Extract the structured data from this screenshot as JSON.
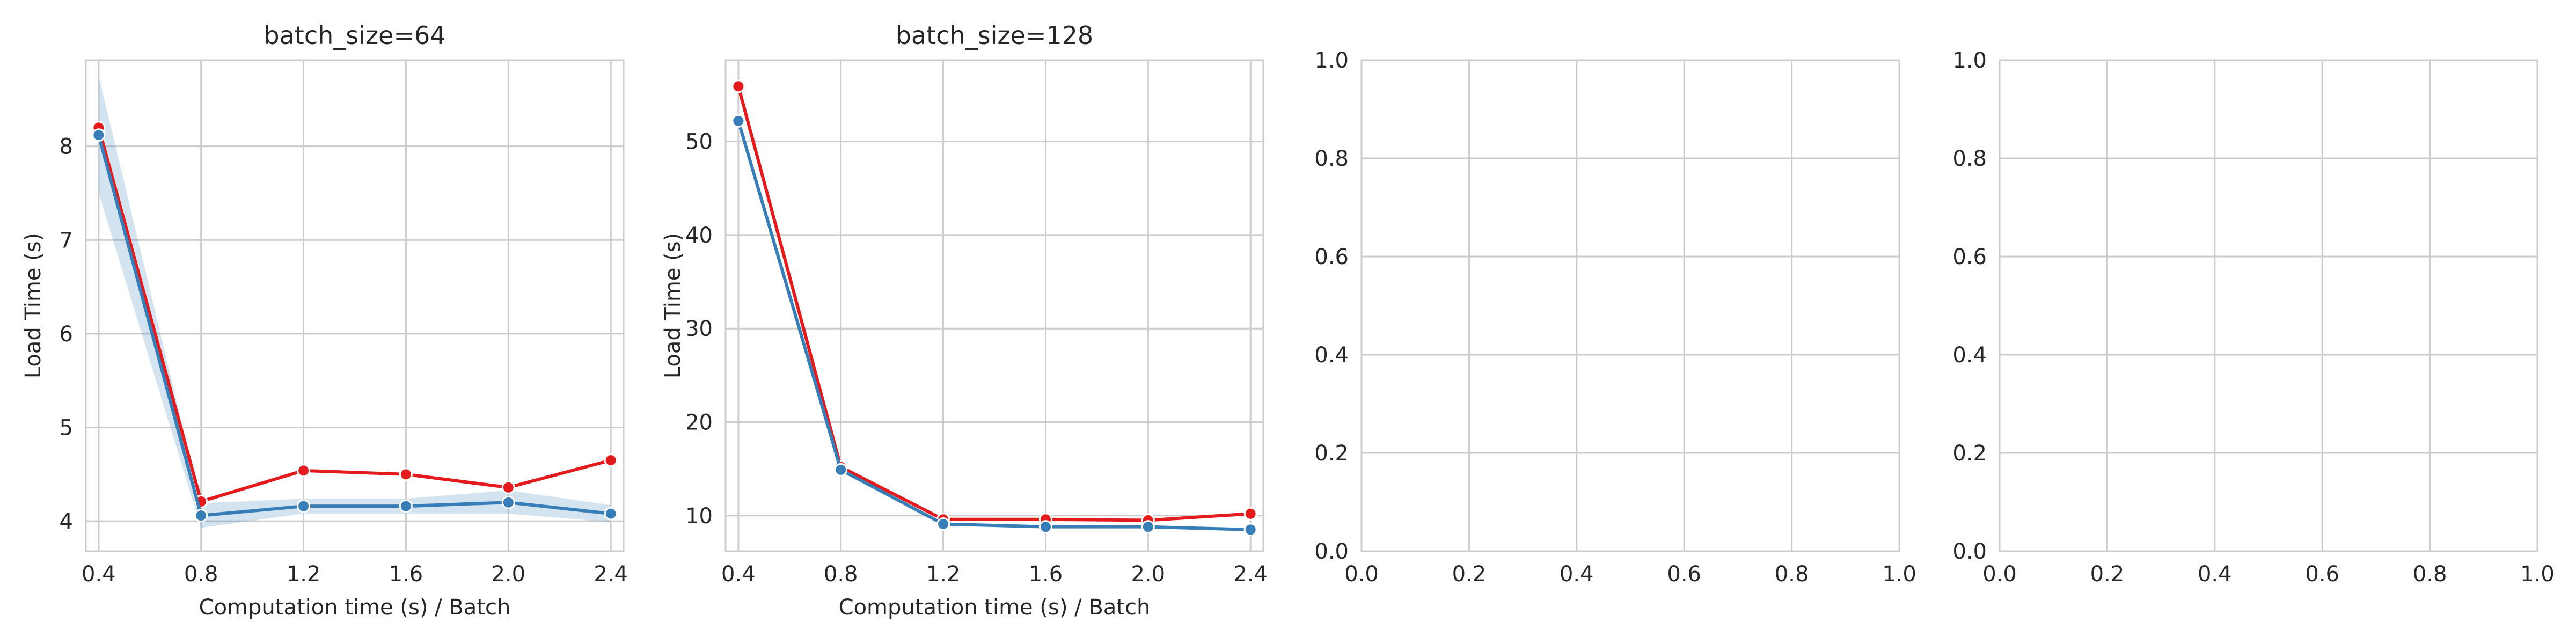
{
  "chart_data": [
    {
      "type": "line",
      "title": "batch_size=64",
      "xlabel": "Computation time (s) / Batch",
      "ylabel": "Load Time (s)",
      "xlim": [
        0.35,
        2.45
      ],
      "ylim": [
        3.68,
        8.92
      ],
      "xticks": [
        "0.4",
        "0.8",
        "1.2",
        "1.6",
        "2.0",
        "2.4"
      ],
      "yticks": [
        "4",
        "5",
        "6",
        "7",
        "8"
      ],
      "grid": true,
      "x": [
        0.4,
        0.8,
        1.2,
        1.6,
        2.0,
        2.4
      ],
      "series": [
        {
          "color": "#e41a1c",
          "values": [
            8.2,
            4.21,
            4.54,
            4.5,
            4.36,
            4.65
          ]
        },
        {
          "color": "#377eb8",
          "values": [
            8.12,
            4.06,
            4.16,
            4.16,
            4.2,
            4.08
          ],
          "band_low": [
            7.5,
            3.93,
            4.08,
            4.08,
            4.08,
            3.99
          ],
          "band_high": [
            8.75,
            4.19,
            4.24,
            4.24,
            4.33,
            4.17
          ]
        }
      ]
    },
    {
      "type": "line",
      "title": "batch_size=128",
      "xlabel": "Computation time (s) / Batch",
      "ylabel": "Load Time (s)",
      "xlim": [
        0.35,
        2.45
      ],
      "ylim": [
        6.2,
        58.7
      ],
      "xticks": [
        "0.4",
        "0.8",
        "1.2",
        "1.6",
        "2.0",
        "2.4"
      ],
      "yticks": [
        "10",
        "20",
        "30",
        "40",
        "50"
      ],
      "grid": true,
      "x": [
        0.4,
        0.8,
        1.2,
        1.6,
        2.0,
        2.4
      ],
      "series": [
        {
          "color": "#e41a1c",
          "values": [
            55.9,
            15.2,
            9.6,
            9.6,
            9.5,
            10.2
          ]
        },
        {
          "color": "#377eb8",
          "values": [
            52.2,
            14.9,
            9.1,
            8.8,
            8.8,
            8.5
          ]
        }
      ]
    },
    {
      "type": "line",
      "title": "",
      "xlabel": "",
      "ylabel": "",
      "xlim": [
        0,
        1
      ],
      "ylim": [
        0,
        1
      ],
      "xticks": [
        "0.0",
        "0.2",
        "0.4",
        "0.6",
        "0.8",
        "1.0"
      ],
      "yticks": [
        "0.0",
        "0.2",
        "0.4",
        "0.6",
        "0.8",
        "1.0"
      ],
      "grid": true,
      "series": []
    },
    {
      "type": "line",
      "title": "",
      "xlabel": "",
      "ylabel": "",
      "xlim": [
        0,
        1
      ],
      "ylim": [
        0,
        1
      ],
      "xticks": [
        "0.0",
        "0.2",
        "0.4",
        "0.6",
        "0.8",
        "1.0"
      ],
      "yticks": [
        "0.0",
        "0.2",
        "0.4",
        "0.6",
        "0.8",
        "1.0"
      ],
      "grid": true,
      "series": []
    }
  ]
}
